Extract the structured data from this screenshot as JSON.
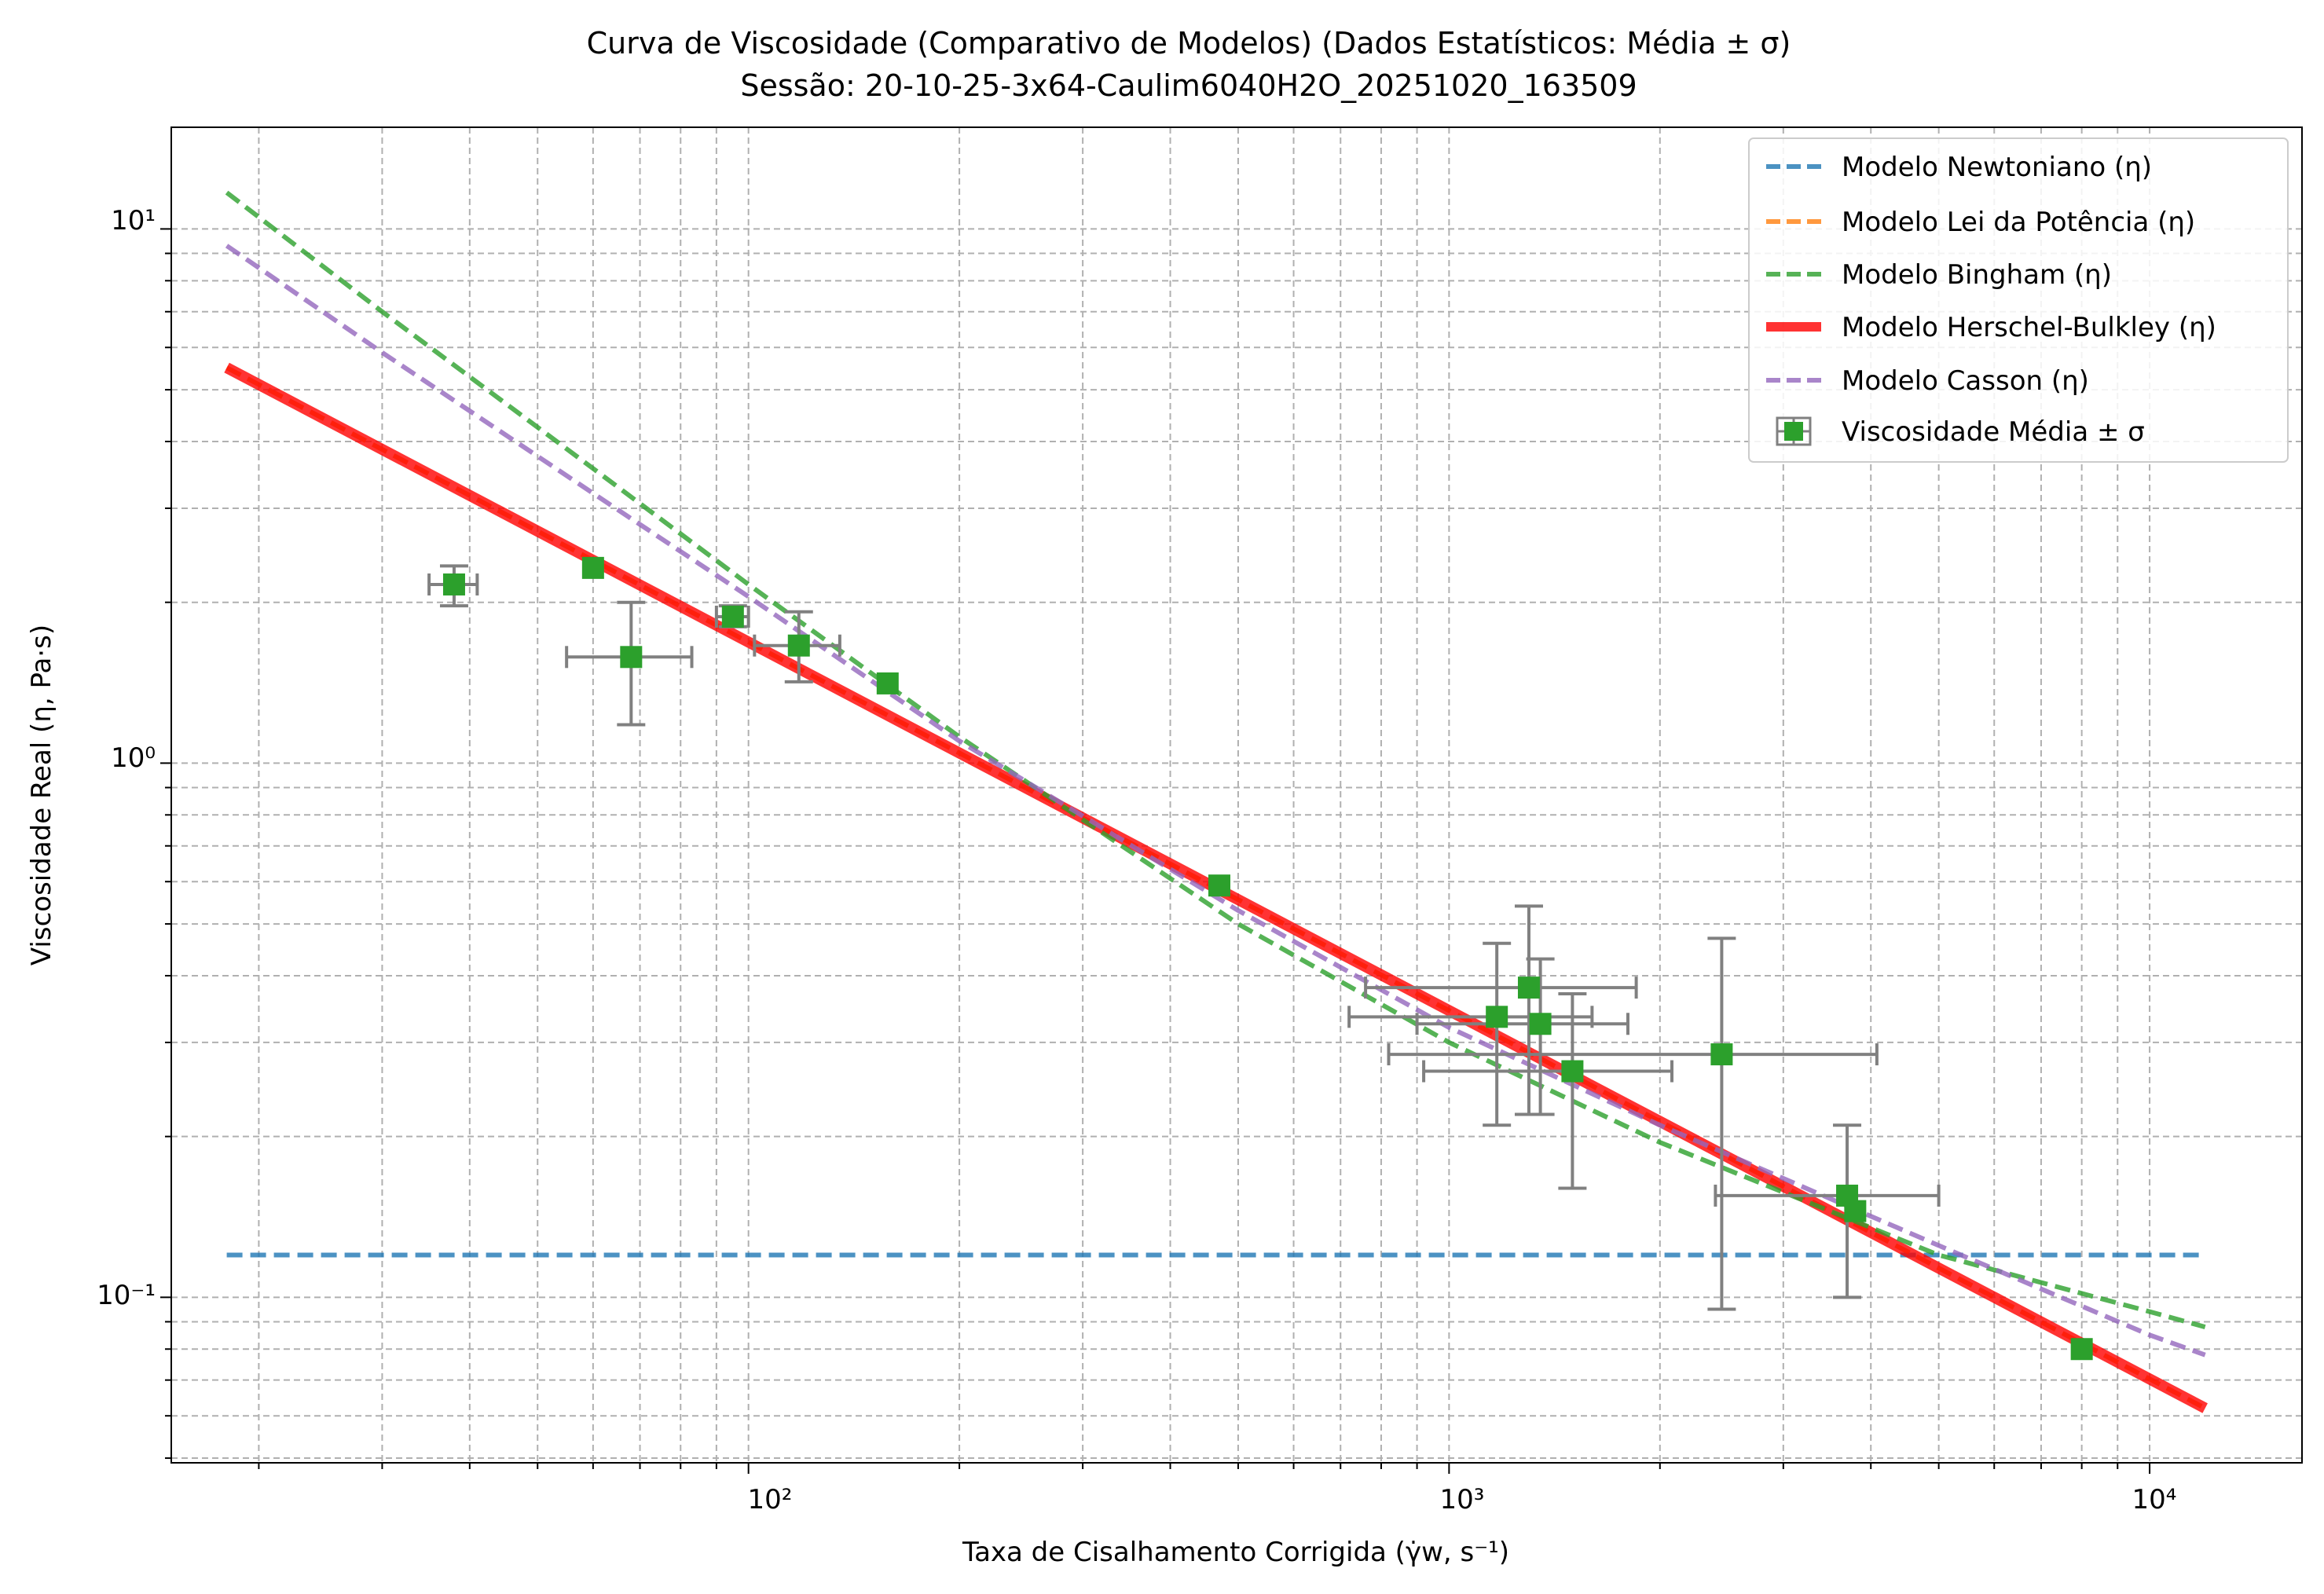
{
  "chart_data": {
    "type": "scatter",
    "title": "Curva de Viscosidade (Comparativo de Modelos) (Dados Estatísticos: Média ± σ)",
    "subtitle": "Sessão: 20-10-25-3x64-Caulim6040H2O_20251020_163509",
    "xlabel": "Taxa de Cisalhamento Corrigida (γ̇w, s⁻¹)",
    "ylabel": "Viscosidade Real (η, Pa·s)",
    "xscale": "log",
    "yscale": "log",
    "xlim": [
      15,
      16500
    ],
    "ylim": [
      0.049,
      15.5
    ],
    "x_ticks": [
      100,
      1000,
      10000
    ],
    "y_ticks": [
      0.1,
      1,
      10
    ],
    "x_tick_labels": [
      "10²",
      "10³",
      "10⁴"
    ],
    "y_tick_labels": [
      "10⁻¹",
      "10⁰",
      "10¹"
    ],
    "grid": "major and minor, dashed",
    "legend_position": "top-right",
    "colors": {
      "newtoniano": "#1f77b4",
      "lei_potencia": "#ff7f0e",
      "bingham": "#2ca02c",
      "herschel_bulkley": "#ff0000",
      "casson": "#9467bd",
      "pontos": "#2ca02c",
      "error_bars": "#808080",
      "grid": "#b0b0b0"
    },
    "series": [
      {
        "name": "Modelo Newtoniano (η)",
        "style": "dashed",
        "color": "#1f77b4",
        "x": [
          18,
          12000
        ],
        "y": [
          0.12,
          0.12
        ]
      },
      {
        "name": "Modelo Lei da Potência (η)",
        "style": "dashed",
        "color": "#ff7f0e",
        "x": [
          18,
          12000
        ],
        "y": [
          5.5,
          0.062
        ]
      },
      {
        "name": "Modelo Bingham (η)",
        "style": "dashed",
        "color": "#2ca02c",
        "x": [
          18,
          30,
          60,
          100,
          200,
          500,
          1000,
          2000,
          5000,
          10000,
          12000
        ],
        "y": [
          11.7,
          7.0,
          3.56,
          2.16,
          1.12,
          0.5,
          0.3,
          0.195,
          0.12,
          0.094,
          0.088
        ]
      },
      {
        "name": "Modelo Herschel-Bulkley (η)",
        "style": "solid",
        "color": "#ff0000",
        "x": [
          18,
          12000
        ],
        "y": [
          5.5,
          0.062
        ]
      },
      {
        "name": "Modelo Casson (η)",
        "style": "dashed",
        "color": "#9467bd",
        "x": [
          18,
          30,
          60,
          100,
          200,
          500,
          1000,
          2000,
          5000,
          10000,
          12000
        ],
        "y": [
          9.3,
          5.87,
          3.2,
          2.05,
          1.1,
          0.53,
          0.32,
          0.21,
          0.125,
          0.085,
          0.078
        ]
      }
    ],
    "points_name": "Viscosidade Média ± σ",
    "points": [
      {
        "x": 38,
        "y": 2.16,
        "x_low": 35,
        "x_high": 41,
        "y_low": 1.97,
        "y_high": 2.34
      },
      {
        "x": 60,
        "y": 2.32,
        "x_low": 60,
        "x_high": 60,
        "y_low": 2.32,
        "y_high": 2.32
      },
      {
        "x": 68,
        "y": 1.58,
        "x_low": 55,
        "x_high": 83,
        "y_low": 1.18,
        "y_high": 2.0
      },
      {
        "x": 95,
        "y": 1.88,
        "x_low": 90,
        "x_high": 100,
        "y_low": 1.8,
        "y_high": 1.97
      },
      {
        "x": 118,
        "y": 1.66,
        "x_low": 102,
        "x_high": 135,
        "y_low": 1.42,
        "y_high": 1.92
      },
      {
        "x": 158,
        "y": 1.41,
        "x_low": 158,
        "x_high": 158,
        "y_low": 1.41,
        "y_high": 1.41
      },
      {
        "x": 470,
        "y": 0.59,
        "x_low": 470,
        "x_high": 470,
        "y_low": 0.59,
        "y_high": 0.59
      },
      {
        "x": 1170,
        "y": 0.335,
        "x_low": 720,
        "x_high": 1600,
        "y_low": 0.21,
        "y_high": 0.46
      },
      {
        "x": 1300,
        "y": 0.38,
        "x_low": 760,
        "x_high": 1850,
        "y_low": 0.22,
        "y_high": 0.54
      },
      {
        "x": 1350,
        "y": 0.325,
        "x_low": 900,
        "x_high": 1800,
        "y_low": 0.22,
        "y_high": 0.43
      },
      {
        "x": 1500,
        "y": 0.265,
        "x_low": 920,
        "x_high": 2080,
        "y_low": 0.16,
        "y_high": 0.37
      },
      {
        "x": 2450,
        "y": 0.285,
        "x_low": 820,
        "x_high": 4080,
        "y_low": 0.095,
        "y_high": 0.47
      },
      {
        "x": 3700,
        "y": 0.155,
        "x_low": 2400,
        "x_high": 5000,
        "y_low": 0.1,
        "y_high": 0.21
      },
      {
        "x": 3800,
        "y": 0.145,
        "x_low": 3800,
        "x_high": 3800,
        "y_low": 0.145,
        "y_high": 0.145
      },
      {
        "x": 8000,
        "y": 0.08,
        "x_low": 8000,
        "x_high": 8000,
        "y_low": 0.08,
        "y_high": 0.08
      }
    ]
  }
}
